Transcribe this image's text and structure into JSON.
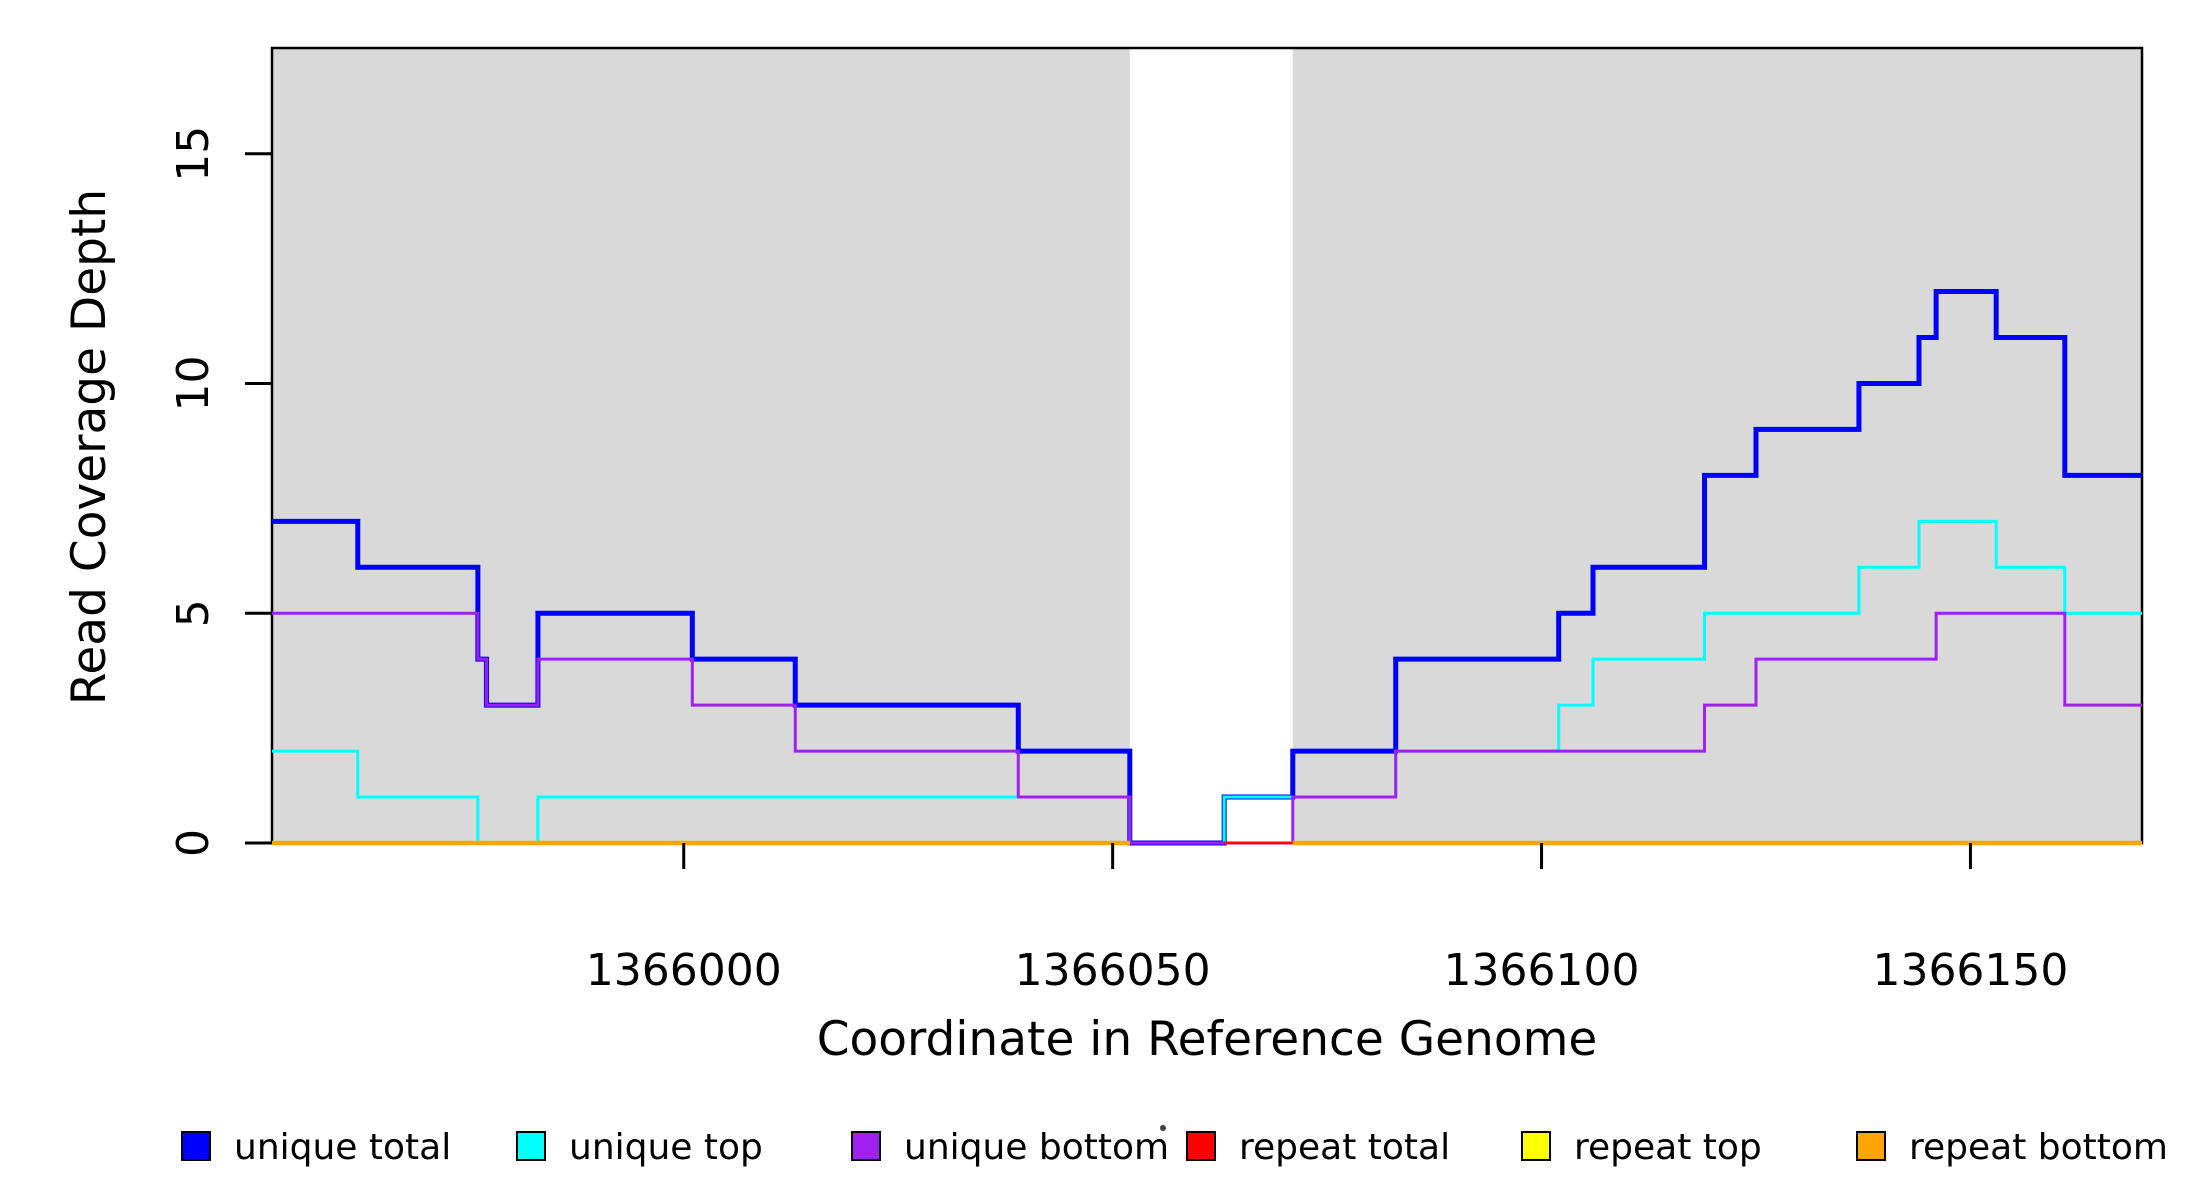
{
  "chart_data": {
    "type": "line",
    "subtype": "step-coverage",
    "title": "",
    "xlabel": "Coordinate in Reference Genome",
    "ylabel": "Read Coverage Depth",
    "xlim": [
      1365952,
      1366170
    ],
    "ylim": [
      0,
      17.3
    ],
    "x_ticks": [
      1366000,
      1366050,
      1366100,
      1366150
    ],
    "y_ticks": [
      0,
      5,
      10,
      15
    ],
    "grid": false,
    "background_color": "#ffffff",
    "shaded_region_color": "#D9D9D9",
    "shaded_regions": [
      {
        "start": 1365952,
        "end": 1366052
      },
      {
        "start": 1366071,
        "end": 1366170
      }
    ],
    "gap_region": {
      "start": 1366052,
      "end": 1366071
    },
    "series": [
      {
        "name": "unique total",
        "color": "#0000FF",
        "width": 5,
        "segments": [
          {
            "pts": [
              [
                1365952,
                7
              ],
              [
                1365962,
                6
              ],
              [
                1365976,
                4
              ],
              [
                1365977,
                3
              ],
              [
                1365983,
                5
              ],
              [
                1366001,
                4
              ],
              [
                1366013,
                3
              ],
              [
                1366039,
                2
              ],
              [
                1366052,
                0
              ],
              [
                1366063,
                1
              ],
              [
                1366071,
                2
              ],
              [
                1366083,
                4
              ],
              [
                1366102,
                5
              ],
              [
                1366106,
                6
              ],
              [
                1366119,
                8
              ],
              [
                1366125,
                9
              ],
              [
                1366137,
                10
              ],
              [
                1366144,
                11
              ],
              [
                1366146,
                12
              ],
              [
                1366153,
                11
              ],
              [
                1366161,
                8
              ]
            ],
            "end": 1366170
          }
        ]
      },
      {
        "name": "unique top",
        "color": "#00FFFF",
        "width": 3,
        "segments": [
          {
            "pts": [
              [
                1365952,
                2
              ],
              [
                1365962,
                1
              ],
              [
                1365976,
                0
              ],
              [
                1365983,
                1
              ],
              [
                1366052,
                0
              ],
              [
                1366063,
                1
              ],
              [
                1366083,
                2
              ],
              [
                1366102,
                3
              ],
              [
                1366106,
                4
              ],
              [
                1366119,
                5
              ],
              [
                1366137,
                6
              ],
              [
                1366144,
                7
              ],
              [
                1366153,
                6
              ],
              [
                1366161,
                5
              ]
            ],
            "end": 1366170
          }
        ]
      },
      {
        "name": "unique bottom",
        "color": "#A020F0",
        "width": 3,
        "segments": [
          {
            "pts": [
              [
                1365952,
                5
              ],
              [
                1365976,
                4
              ],
              [
                1365977,
                3
              ],
              [
                1365983,
                4
              ],
              [
                1366001,
                3
              ],
              [
                1366013,
                2
              ],
              [
                1366039,
                1
              ],
              [
                1366052,
                0
              ],
              [
                1366071,
                1
              ],
              [
                1366083,
                2
              ],
              [
                1366119,
                3
              ],
              [
                1366125,
                4
              ],
              [
                1366146,
                5
              ],
              [
                1366161,
                3
              ]
            ],
            "end": 1366170
          }
        ]
      },
      {
        "name": "repeat total",
        "color": "#FF0000",
        "width": 2.5,
        "segments": [
          {
            "pts": [
              [
                1365952,
                0
              ]
            ],
            "end": 1366052
          },
          {
            "pts": [
              [
                1366063,
                0
              ]
            ],
            "end": 1366170
          }
        ]
      },
      {
        "name": "repeat top",
        "color": "#FFFF00",
        "width": 2.5,
        "segments": [
          {
            "pts": [
              [
                1365952,
                0
              ]
            ],
            "end": 1366052
          },
          {
            "pts": [
              [
                1366071,
                0
              ]
            ],
            "end": 1366170
          }
        ]
      },
      {
        "name": "repeat bottom",
        "color": "#FFA500",
        "width": 4.5,
        "segments": [
          {
            "pts": [
              [
                1365952,
                0
              ]
            ],
            "end": 1366052
          },
          {
            "pts": [
              [
                1366071,
                0
              ]
            ],
            "end": 1366170
          }
        ]
      }
    ],
    "legend": {
      "position": "bottom",
      "items": [
        {
          "label": "unique total",
          "color": "#0000FF"
        },
        {
          "label": "unique top",
          "color": "#00FFFF"
        },
        {
          "label": "unique bottom",
          "color": "#A020F0"
        },
        {
          "label": "repeat total",
          "color": "#FF0000"
        },
        {
          "label": "repeat top",
          "color": "#FFFF00"
        },
        {
          "label": "repeat bottom",
          "color": "#FFA500"
        }
      ]
    }
  }
}
